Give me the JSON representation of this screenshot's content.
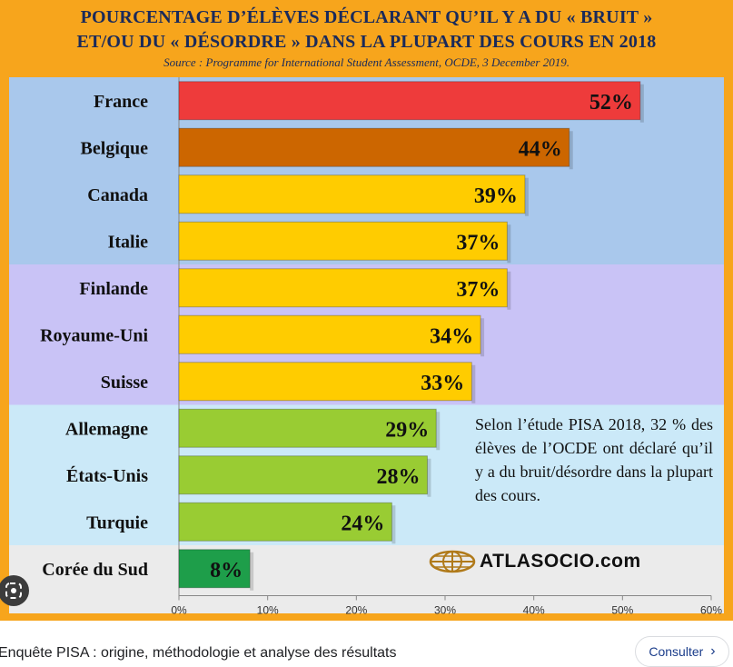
{
  "chart_data": {
    "type": "bar",
    "orientation": "horizontal",
    "title_lines": [
      "POURCENTAGE D’ÉLÈVES DÉCLARANT QU’IL Y A DU « BRUIT »",
      "ET/OU DU « DÉSORDRE » DANS LA PLUPART DES COURS EN 2018"
    ],
    "subtitle": "Source : Programme for International Student Assessment, OCDE, 3 December 2019.",
    "categories": [
      "France",
      "Belgique",
      "Canada",
      "Italie",
      "Finlande",
      "Royaume-Uni",
      "Suisse",
      "Allemagne",
      "États-Unis",
      "Turquie",
      "Corée du Sud"
    ],
    "values": [
      52,
      44,
      39,
      37,
      37,
      34,
      33,
      29,
      28,
      24,
      8
    ],
    "data_labels": [
      "52%",
      "44%",
      "39%",
      "37%",
      "37%",
      "34%",
      "33%",
      "29%",
      "28%",
      "24%",
      "8%"
    ],
    "bar_colors": [
      "#ee3b3b",
      "#cc6600",
      "#ffcc00",
      "#ffcc00",
      "#ffcc00",
      "#ffcc00",
      "#ffcc00",
      "#99cc33",
      "#99cc33",
      "#99cc33",
      "#1e9e4a"
    ],
    "xlim": [
      0,
      60
    ],
    "xticks": [
      0,
      10,
      20,
      30,
      40,
      50,
      60
    ],
    "xtick_labels": [
      "0%",
      "10%",
      "20%",
      "30%",
      "40%",
      "50%",
      "60%"
    ],
    "grid": false,
    "legend": "none",
    "background_bands": [
      {
        "color": "#a9c8ec",
        "rows": [
          0,
          4
        ]
      },
      {
        "color": "#c9c3f6",
        "rows": [
          4,
          7
        ]
      },
      {
        "color": "#cbe9f8",
        "rows": [
          7,
          10
        ]
      },
      {
        "color": "#ebebeb",
        "rows": [
          10,
          11
        ]
      }
    ]
  },
  "annotation": "Selon l’étude PISA 2018, 32 % des élèves de l’OCDE ont déclaré qu’il y a du bruit/désordre dans la plupart des cours.",
  "logo_text": "ATLASOCIO.com",
  "caption": "Enquête PISA : origine, méthodologie et analyse des résultats",
  "consult_label": "Consulter",
  "colors": {
    "frame": "#f7a51c",
    "title": "#1a2a5a",
    "label": "#111111"
  }
}
